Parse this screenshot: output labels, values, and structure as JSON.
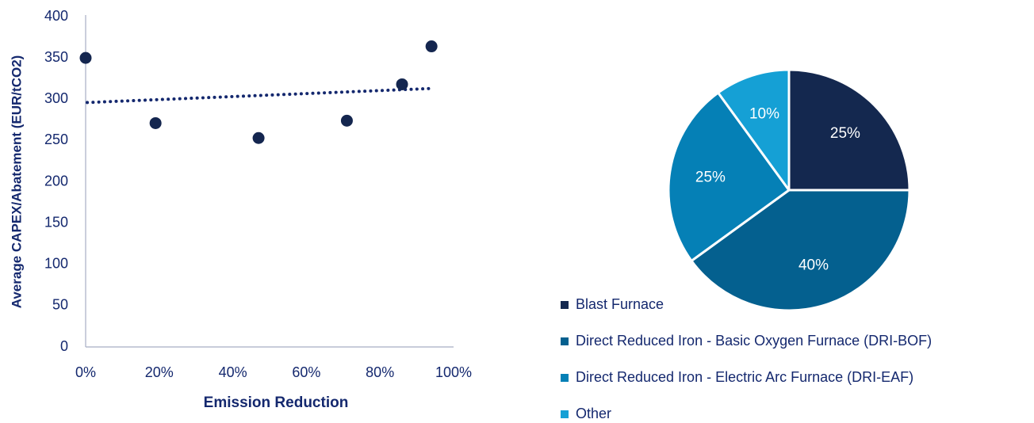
{
  "colors": {
    "text": "#14286e",
    "axis": "#a6aec4",
    "point": "#14264f",
    "trend": "#14286e",
    "slice_border": "#ffffff"
  },
  "chart_data": [
    {
      "type": "scatter",
      "title": "",
      "xlabel": "Emission Reduction",
      "ylabel": "Average CAPEX/Abatement (EUR/tCO2)",
      "xlim": [
        0,
        100
      ],
      "ylim": [
        0,
        400
      ],
      "x_ticks": [
        0,
        20,
        40,
        60,
        80,
        100
      ],
      "x_tick_labels": [
        "0%",
        "20%",
        "40%",
        "60%",
        "80%",
        "100%"
      ],
      "y_ticks": [
        0,
        50,
        100,
        150,
        200,
        250,
        300,
        350,
        400
      ],
      "y_tick_labels": [
        "0",
        "50",
        "100",
        "150",
        "200",
        "250",
        "300",
        "350",
        "400"
      ],
      "grid": false,
      "points": [
        {
          "x": 0,
          "y": 350
        },
        {
          "x": 19,
          "y": 271
        },
        {
          "x": 47,
          "y": 253
        },
        {
          "x": 71,
          "y": 274
        },
        {
          "x": 86,
          "y": 318
        },
        {
          "x": 94,
          "y": 364
        }
      ],
      "trendline": {
        "style": "dotted",
        "x": [
          0,
          94
        ],
        "y": [
          296,
          313
        ]
      }
    },
    {
      "type": "pie",
      "title": "",
      "start_angle_deg": 0,
      "direction": "clockwise",
      "legend_position": "left-bottom",
      "slices": [
        {
          "label": "Blast Furnace",
          "value": 25,
          "value_label": "25%",
          "color": "#14284f"
        },
        {
          "label": "Direct Reduced Iron - Basic Oxygen Furnace (DRI-BOF)",
          "value": 40,
          "value_label": "40%",
          "color": "#04608f"
        },
        {
          "label": "Direct Reduced Iron - Electric Arc Furnace (DRI-EAF)",
          "value": 25,
          "value_label": "25%",
          "color": "#0580b6"
        },
        {
          "label": "Other",
          "value": 10,
          "value_label": "10%",
          "color": "#15a0d5"
        }
      ]
    }
  ]
}
